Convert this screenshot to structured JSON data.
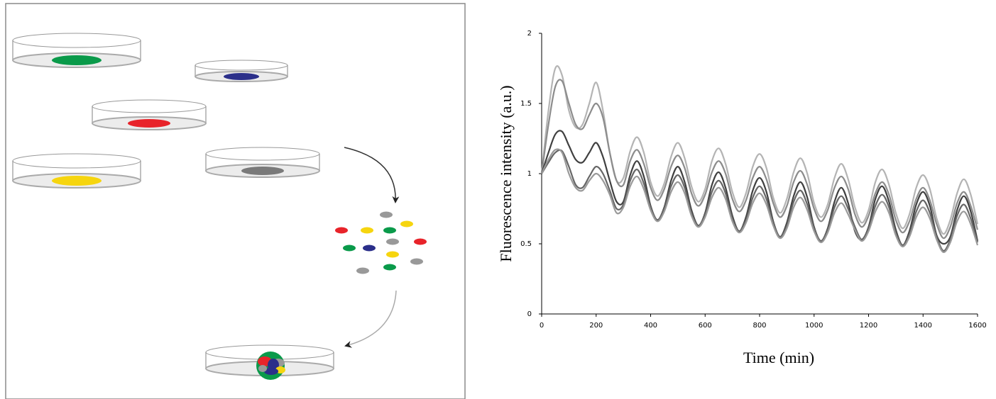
{
  "chart_data": {
    "type": "line",
    "x_label": "Time (min)",
    "y_label": "Fluorescence intensity (a.u.)",
    "x": [
      0,
      25,
      50,
      75,
      100,
      125,
      150,
      175,
      200,
      225,
      250,
      275,
      300,
      325,
      350,
      375,
      400,
      425,
      450,
      475,
      500,
      525,
      550,
      575,
      600,
      625,
      650,
      675,
      700,
      725,
      750,
      775,
      800,
      825,
      850,
      875,
      900,
      925,
      950,
      975,
      1000,
      1025,
      1050,
      1075,
      1100,
      1125,
      1150,
      1175,
      1200,
      1225,
      1250,
      1275,
      1300,
      1325,
      1350,
      1375,
      1400,
      1425,
      1450,
      1475,
      1500,
      1525,
      1550,
      1575,
      1600
    ],
    "series": [
      {
        "color": "#b4b4b4",
        "values": [
          1.0,
          1.45,
          1.75,
          1.7,
          1.45,
          1.33,
          1.35,
          1.5,
          1.65,
          1.45,
          1.15,
          0.95,
          0.97,
          1.16,
          1.26,
          1.15,
          0.94,
          0.84,
          0.93,
          1.12,
          1.22,
          1.11,
          0.91,
          0.8,
          0.89,
          1.09,
          1.18,
          1.07,
          0.87,
          0.76,
          0.86,
          1.05,
          1.14,
          1.04,
          0.83,
          0.72,
          0.82,
          1.01,
          1.11,
          1.0,
          0.79,
          0.69,
          0.78,
          0.97,
          1.07,
          0.96,
          0.76,
          0.65,
          0.74,
          0.94,
          1.03,
          0.92,
          0.72,
          0.61,
          0.71,
          0.9,
          0.99,
          0.89,
          0.68,
          0.57,
          0.67,
          0.86,
          0.96,
          0.85,
          0.64
        ]
      },
      {
        "color": "#8c8c8c",
        "values": [
          1.0,
          1.35,
          1.62,
          1.66,
          1.5,
          1.35,
          1.32,
          1.42,
          1.5,
          1.4,
          1.15,
          0.95,
          0.92,
          1.09,
          1.17,
          1.07,
          0.9,
          0.81,
          0.89,
          1.05,
          1.13,
          1.04,
          0.86,
          0.77,
          0.85,
          1.01,
          1.09,
          1.0,
          0.82,
          0.73,
          0.81,
          0.97,
          1.05,
          0.96,
          0.79,
          0.69,
          0.77,
          0.94,
          1.02,
          0.92,
          0.75,
          0.66,
          0.74,
          0.9,
          0.98,
          0.89,
          0.71,
          0.62,
          0.7,
          0.86,
          0.94,
          0.85,
          0.67,
          0.58,
          0.66,
          0.82,
          0.9,
          0.81,
          0.64,
          0.54,
          0.62,
          0.79,
          0.87,
          0.77,
          0.6
        ]
      },
      {
        "color": "#404040",
        "values": [
          1.0,
          1.15,
          1.28,
          1.3,
          1.2,
          1.1,
          1.08,
          1.15,
          1.22,
          1.12,
          0.95,
          0.8,
          0.8,
          0.99,
          1.09,
          0.98,
          0.77,
          0.67,
          0.76,
          0.95,
          1.05,
          0.94,
          0.74,
          0.63,
          0.72,
          0.92,
          1.01,
          0.9,
          0.7,
          0.59,
          0.69,
          0.88,
          0.97,
          0.87,
          0.66,
          0.55,
          0.65,
          0.84,
          0.94,
          0.83,
          0.62,
          0.52,
          0.61,
          0.8,
          0.9,
          0.79,
          0.59,
          0.53,
          0.62,
          0.82,
          0.91,
          0.8,
          0.6,
          0.49,
          0.59,
          0.78,
          0.87,
          0.77,
          0.56,
          0.5,
          0.55,
          0.74,
          0.84,
          0.73,
          0.52
        ]
      },
      {
        "color": "#666666",
        "values": [
          1.0,
          1.08,
          1.15,
          1.16,
          1.05,
          0.92,
          0.9,
          0.98,
          1.05,
          1.0,
          0.88,
          0.75,
          0.78,
          0.95,
          1.03,
          0.93,
          0.76,
          0.67,
          0.75,
          0.91,
          0.99,
          0.9,
          0.72,
          0.63,
          0.71,
          0.87,
          0.95,
          0.86,
          0.68,
          0.59,
          0.67,
          0.83,
          0.91,
          0.82,
          0.65,
          0.55,
          0.63,
          0.8,
          0.88,
          0.78,
          0.61,
          0.52,
          0.6,
          0.76,
          0.84,
          0.75,
          0.62,
          0.53,
          0.61,
          0.77,
          0.85,
          0.76,
          0.58,
          0.49,
          0.57,
          0.73,
          0.81,
          0.72,
          0.55,
          0.45,
          0.53,
          0.7,
          0.78,
          0.68,
          0.51
        ]
      },
      {
        "color": "#9a9a9a",
        "values": [
          1.0,
          1.1,
          1.17,
          1.15,
          1.0,
          0.9,
          0.88,
          0.95,
          1.0,
          0.95,
          0.85,
          0.72,
          0.76,
          0.91,
          0.98,
          0.89,
          0.74,
          0.66,
          0.73,
          0.87,
          0.94,
          0.86,
          0.7,
          0.62,
          0.69,
          0.83,
          0.9,
          0.82,
          0.66,
          0.58,
          0.65,
          0.79,
          0.86,
          0.78,
          0.63,
          0.54,
          0.61,
          0.76,
          0.83,
          0.74,
          0.59,
          0.51,
          0.58,
          0.72,
          0.79,
          0.71,
          0.6,
          0.52,
          0.59,
          0.73,
          0.8,
          0.72,
          0.56,
          0.48,
          0.55,
          0.69,
          0.76,
          0.68,
          0.53,
          0.44,
          0.51,
          0.66,
          0.73,
          0.64,
          0.49
        ]
      }
    ],
    "xlim": [
      0,
      1600
    ],
    "xticks": [
      0,
      200,
      400,
      600,
      800,
      1000,
      1200,
      1400,
      1600
    ],
    "ylim": [
      0,
      2
    ],
    "yticks": [
      0,
      0.5,
      1,
      1.5,
      2
    ],
    "grid": false
  }
}
